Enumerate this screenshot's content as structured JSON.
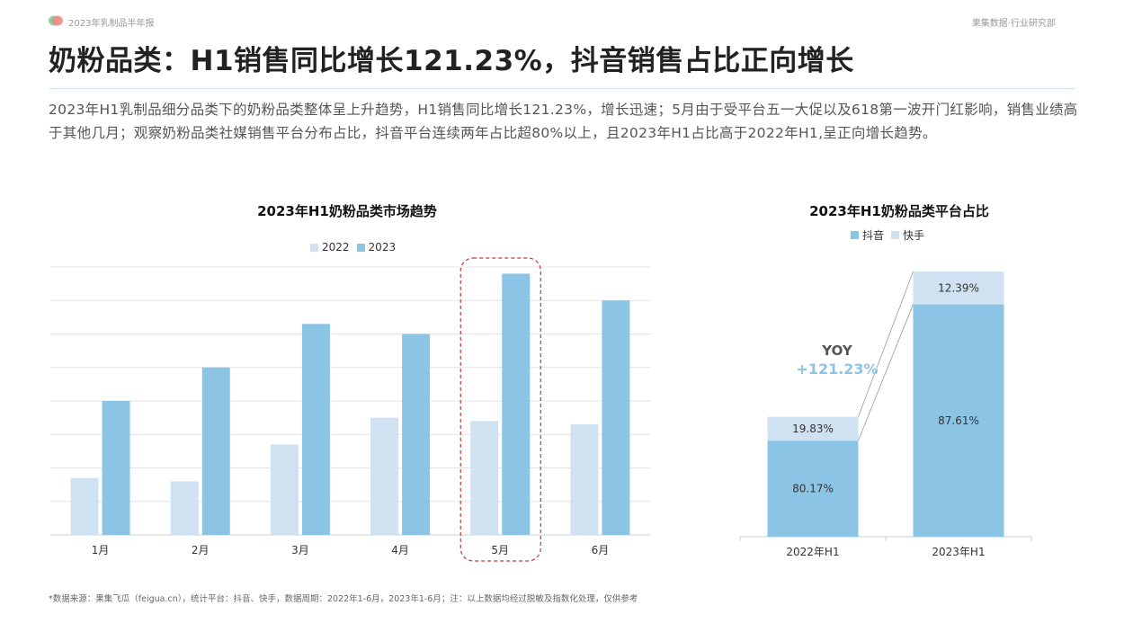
{
  "header": {
    "report_name": "2023年乳制品半年报",
    "source_brand": "果集数据·行业研究部"
  },
  "title": "奶粉品类：H1销售同比增长121.23%，抖音销售占比正向增长",
  "description": "2023年H1乳制品细分品类下的奶粉品类整体呈上升趋势，H1销售同比增长121.23%，增长迅速；5月由于受平台五一大促以及618第一波开门红影响，销售业绩高于其他几月；观察奶粉品类社媒销售平台分布占比，抖音平台连续两年占比超80%以上，且2023年H1占比高于2022年H1,呈正向增长趋势。",
  "colors": {
    "series_2022": "#d0e2f1",
    "series_2023": "#8cc4e6",
    "douyin": "#8cc4e6",
    "kuaishou": "#d0e2f1",
    "highlight": "#c0393b",
    "yoy": "#8cc4e6"
  },
  "chart_data": [
    {
      "type": "bar",
      "title": "2023年H1奶粉品类市场趋势",
      "categories": [
        "1月",
        "2月",
        "3月",
        "4月",
        "5月",
        "6月"
      ],
      "series": [
        {
          "name": "2022",
          "values": [
            17,
            16,
            27,
            35,
            34,
            33
          ]
        },
        {
          "name": "2023",
          "values": [
            40,
            50,
            63,
            60,
            78,
            70
          ]
        }
      ],
      "ylim": [
        0,
        80
      ],
      "grid": true,
      "legend": "top-center",
      "highlight_category": "5月"
    },
    {
      "type": "bar",
      "stacked": true,
      "title": "2023年H1奶粉品类平台占比",
      "categories": [
        "2022年H1",
        "2023年H1"
      ],
      "series": [
        {
          "name": "抖音",
          "values": [
            80.17,
            87.61
          ],
          "labels": [
            "80.17%",
            "87.61%"
          ]
        },
        {
          "name": "快手",
          "values": [
            19.83,
            12.39
          ],
          "labels": [
            "19.83%",
            "12.39%"
          ]
        }
      ],
      "relative_total": [
        100,
        221.23
      ],
      "annotation": {
        "label": "YOY",
        "value": "+121.23%"
      },
      "legend": "top-center"
    }
  ],
  "footnote": "*数据来源：果集飞瓜（feigua.cn），统计平台：抖音、快手，数据周期：2022年1-6月，2023年1-6月；注：以上数据均经过脱敏及指数化处理，仅供参考"
}
